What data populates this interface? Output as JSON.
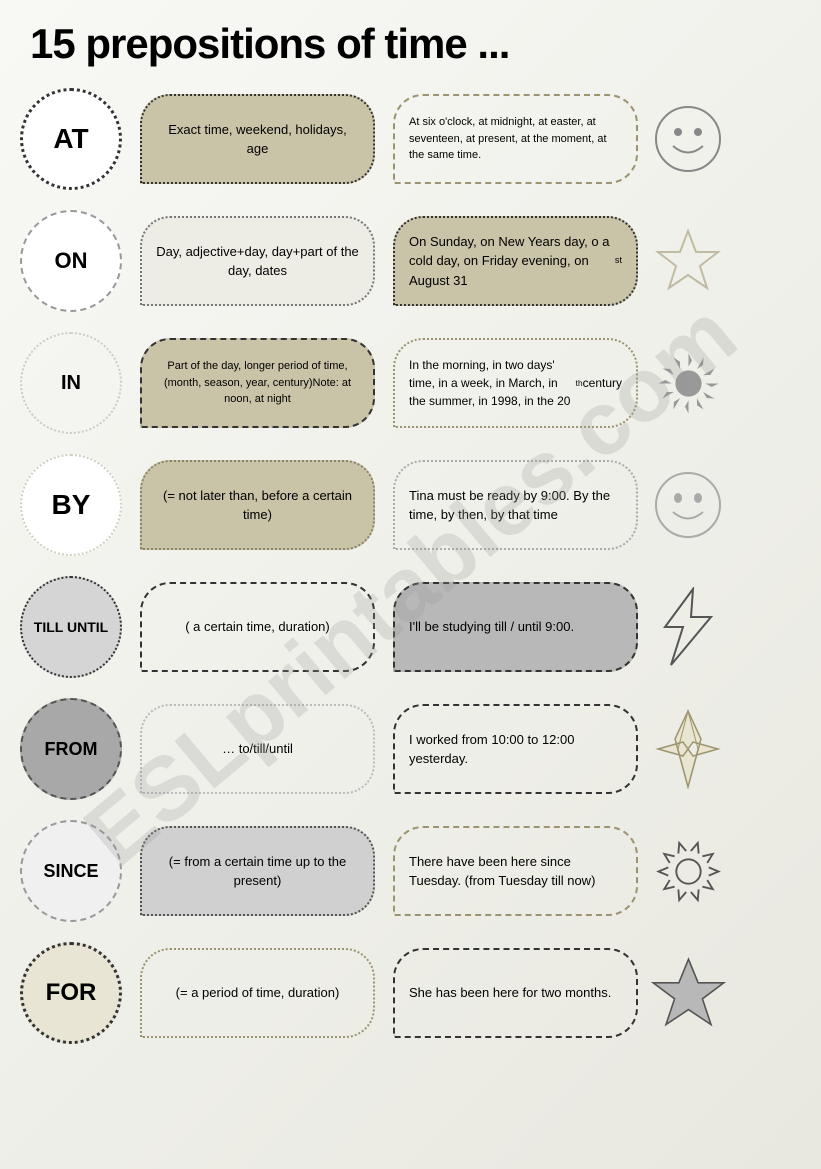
{
  "title": "15 prepositions of time ...",
  "watermark": "ESLprintables.com",
  "colors": {
    "khaki": "#c9c3a8",
    "khaki_border": "#8a8568",
    "grey_fill": "#b8b8b8",
    "grey_border": "#666666",
    "light_fill": "#f2f0e8",
    "dark_border": "#333333",
    "olive": "#9c9470"
  },
  "rows": [
    {
      "prep": "AT",
      "circle": {
        "fill": "#ffffff",
        "border": "3px dotted #333",
        "font": "28px"
      },
      "desc": "Exact time, weekend, holidays, age",
      "desc_style": {
        "fill": "#c9c3a8",
        "border": "2px dotted #333"
      },
      "example": "At six o'clock, at midnight, at easter, at seventeen, at present, at the moment, at the same time.",
      "ex_style": {
        "fill": "transparent",
        "border": "2px dashed #9c9470",
        "font": "11px"
      },
      "icon": "smiley"
    },
    {
      "prep": "ON",
      "circle": {
        "fill": "#ffffff",
        "border": "2px dashed #999",
        "font": "22px"
      },
      "desc": "Day, adjective+day, day+part of the day, dates",
      "desc_style": {
        "fill": "#eeede5",
        "border": "2px dotted #777"
      },
      "example_html": "On Sunday, on New Years day, o a cold day, on Friday evening, on August 31<sup>st</sup>",
      "ex_style": {
        "fill": "#c9c3a8",
        "border": "2px dotted #333"
      },
      "icon": "star-outline"
    },
    {
      "prep": "IN",
      "circle": {
        "fill": "transparent",
        "border": "2px dotted #ccc",
        "font": "20px"
      },
      "desc": "Part of the day, longer period of time, (month, season, year, century)Note: at noon, at night",
      "desc_style": {
        "fill": "#c9c3a8",
        "border": "2px dashed #333",
        "font": "11px"
      },
      "example_html": "In the morning, in two days' time, in a week, in March, in the summer, in 1998, in the 20<sup>th</sup> century",
      "ex_style": {
        "fill": "transparent",
        "border": "2px dotted #9c9470",
        "font": "12px"
      },
      "icon": "sun-grey"
    },
    {
      "prep": "BY",
      "circle": {
        "fill": "#ffffff",
        "border": "2px dotted #d0d0c0",
        "font": "28px"
      },
      "desc": "(= not later than, before a certain time)",
      "desc_style": {
        "fill": "#c9c3a8",
        "border": "2px dotted #8a8568"
      },
      "example": "Tina must be ready by 9:00. By the time, by then, by that time",
      "ex_style": {
        "fill": "transparent",
        "border": "2px dotted #aaa"
      },
      "icon": "smiley-grey"
    },
    {
      "prep": "TILL UNTIL",
      "circle": {
        "fill": "#d5d5d5",
        "border": "2px dotted #333",
        "font": "14px"
      },
      "desc": "( a certain time, duration)",
      "desc_style": {
        "fill": "transparent",
        "border": "2px dashed #333"
      },
      "example": "I'll be studying till / until 9:00.",
      "ex_style": {
        "fill": "#b8b8b8",
        "border": "2px dashed #333"
      },
      "icon": "lightning"
    },
    {
      "prep": "FROM",
      "circle": {
        "fill": "#a8a8a8",
        "border": "2px dashed #555",
        "font": "18px"
      },
      "desc": "… to/till/until",
      "desc_style": {
        "fill": "transparent",
        "border": "2px dotted #bbb"
      },
      "example": "I worked from 10:00 to 12:00 yesterday.",
      "ex_style": {
        "fill": "transparent",
        "border": "2px dashed #333"
      },
      "icon": "diamond"
    },
    {
      "prep": "SINCE",
      "circle": {
        "fill": "#f0f0f0",
        "border": "2px dashed #999",
        "font": "18px"
      },
      "desc": "(= from a certain time up to the present)",
      "desc_style": {
        "fill": "#d0d0d0",
        "border": "2px dotted #555"
      },
      "example": "There have been here since Tuesday. (from Tuesday till now)",
      "ex_style": {
        "fill": "transparent",
        "border": "2px dashed #9c9470"
      },
      "icon": "sun-outline"
    },
    {
      "prep": "FOR",
      "circle": {
        "fill": "#e8e5d5",
        "border": "3px dotted #333",
        "font": "24px"
      },
      "desc": "(= a period of time, duration)",
      "desc_style": {
        "fill": "transparent",
        "border": "2px dotted #9c9470"
      },
      "example": "She has been here for two months.",
      "ex_style": {
        "fill": "transparent",
        "border": "2px dashed #333"
      },
      "icon": "star-grey"
    }
  ]
}
